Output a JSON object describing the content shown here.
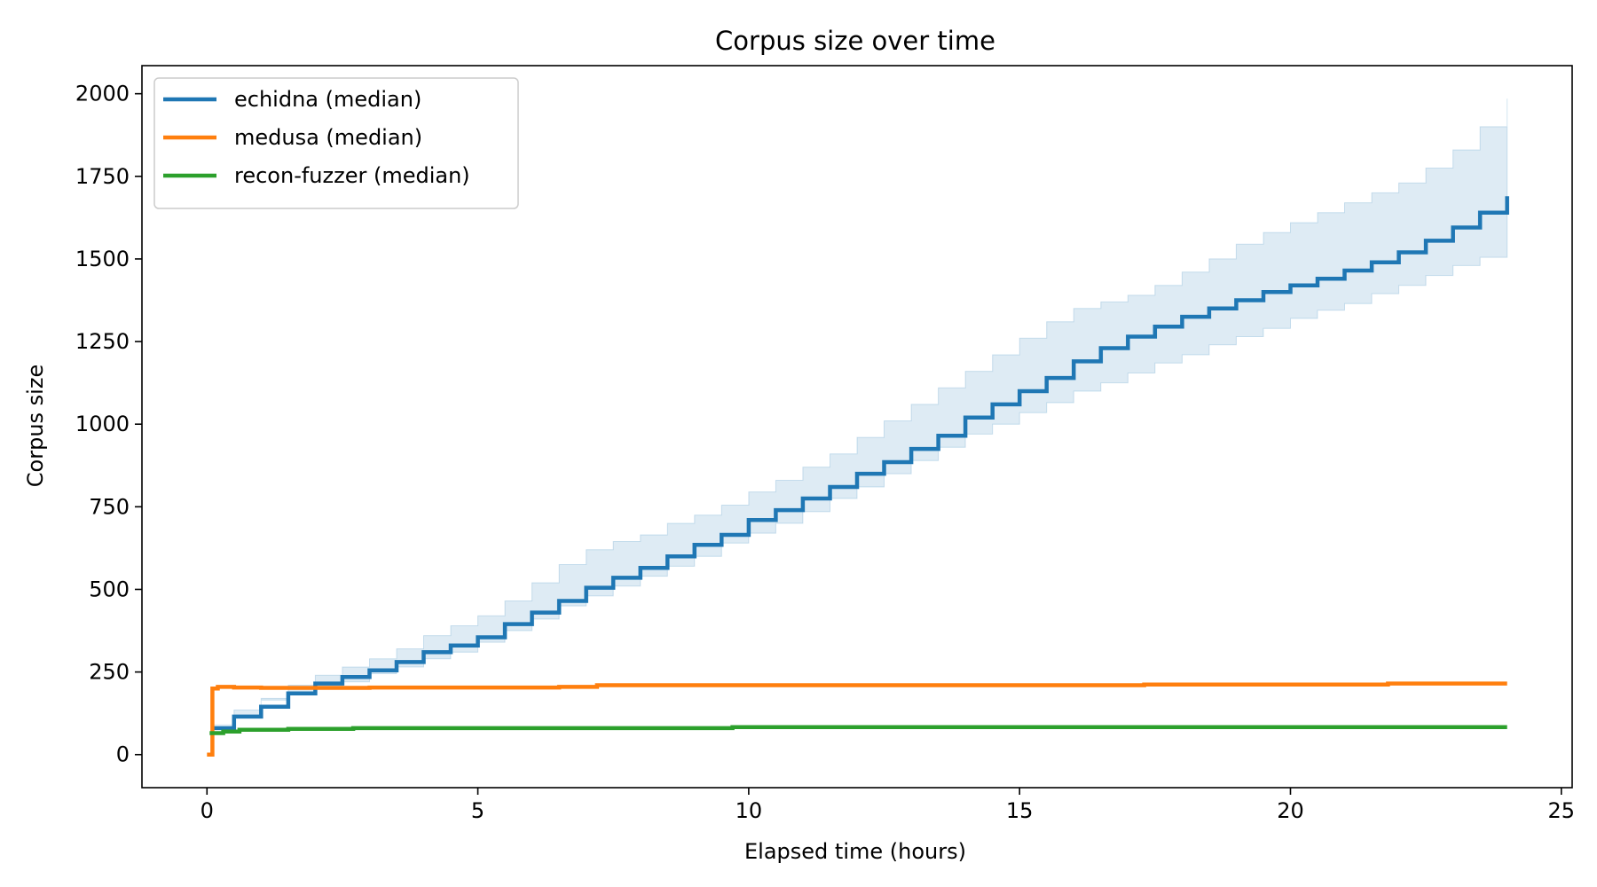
{
  "chart_data": {
    "type": "line",
    "title": "Corpus size over time",
    "xlabel": "Elapsed time (hours)",
    "ylabel": "Corpus size",
    "xlim": [
      -1.2,
      25.2
    ],
    "ylim": [
      -100,
      2085
    ],
    "xticks": [
      0,
      5,
      10,
      15,
      20,
      25
    ],
    "yticks": [
      0,
      250,
      500,
      750,
      1000,
      1250,
      1500,
      1750,
      2000
    ],
    "grid": false,
    "legend_position": "upper left",
    "series": [
      {
        "name": "echidna (median)",
        "color": "#1f77b4",
        "step": true,
        "x": [
          0.1,
          0.5,
          1,
          1.5,
          2,
          2.5,
          3,
          3.5,
          4,
          4.5,
          5,
          5.5,
          6,
          6.5,
          7,
          7.5,
          8,
          8.5,
          9,
          9.5,
          10,
          10.5,
          11,
          11.5,
          12,
          12.5,
          13,
          13.5,
          14,
          14.5,
          15,
          15.5,
          16,
          16.5,
          17,
          17.5,
          18,
          18.5,
          19,
          19.5,
          20,
          20.5,
          21,
          21.5,
          22,
          22.5,
          23,
          23.5,
          24
        ],
        "y": [
          80,
          115,
          145,
          185,
          215,
          235,
          255,
          280,
          310,
          330,
          355,
          395,
          430,
          465,
          505,
          535,
          565,
          600,
          635,
          665,
          710,
          740,
          775,
          810,
          850,
          885,
          925,
          965,
          1020,
          1060,
          1100,
          1140,
          1190,
          1230,
          1265,
          1295,
          1325,
          1350,
          1375,
          1400,
          1420,
          1440,
          1465,
          1490,
          1520,
          1555,
          1595,
          1640,
          1690
        ],
        "band_low": [
          70,
          90,
          120,
          165,
          190,
          205,
          220,
          245,
          265,
          290,
          310,
          340,
          375,
          410,
          450,
          480,
          510,
          540,
          570,
          600,
          640,
          670,
          700,
          735,
          775,
          810,
          850,
          890,
          930,
          970,
          1000,
          1035,
          1065,
          1100,
          1125,
          1155,
          1185,
          1210,
          1240,
          1265,
          1290,
          1320,
          1345,
          1365,
          1395,
          1420,
          1450,
          1480,
          1505
        ],
        "band_high": [
          90,
          135,
          170,
          210,
          240,
          265,
          290,
          320,
          360,
          390,
          420,
          465,
          520,
          575,
          620,
          645,
          665,
          700,
          725,
          755,
          795,
          830,
          870,
          910,
          960,
          1010,
          1060,
          1110,
          1160,
          1210,
          1260,
          1310,
          1350,
          1370,
          1390,
          1420,
          1460,
          1500,
          1545,
          1580,
          1610,
          1640,
          1670,
          1700,
          1730,
          1775,
          1830,
          1900,
          1985
        ]
      },
      {
        "name": "medusa (median)",
        "color": "#ff7f0e",
        "step": true,
        "x": [
          0,
          0.1,
          0.2,
          0.5,
          1,
          3,
          6.5,
          7.2,
          10,
          15,
          17.3,
          20,
          21.8,
          24
        ],
        "y": [
          0,
          200,
          205,
          203,
          202,
          203,
          205,
          210,
          210,
          210,
          212,
          212,
          215,
          215
        ]
      },
      {
        "name": "recon-fuzzer (median)",
        "color": "#2ca02c",
        "step": true,
        "x": [
          0.05,
          0.3,
          0.6,
          1.5,
          2.7,
          5,
          9.7,
          15,
          20,
          24
        ],
        "y": [
          65,
          70,
          75,
          78,
          80,
          80,
          83,
          83,
          83,
          83
        ]
      }
    ]
  }
}
